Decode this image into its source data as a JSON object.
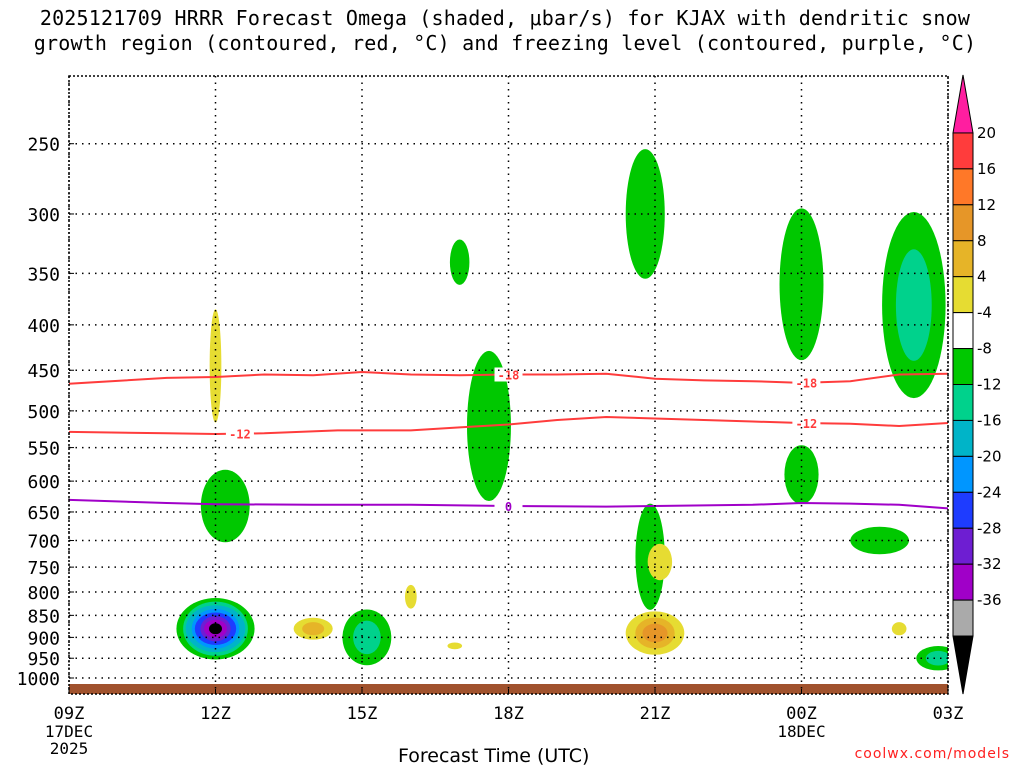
{
  "chart_data": {
    "type": "time-height contour plot",
    "title_line1": "2025121709 HRRR Forecast Omega (shaded, μbar/s) for KJAX with dendritic snow",
    "title_line2": "growth region (contoured, red, °C) and freezing level (contoured, purple, °C)",
    "xlabel": "Forecast Time (UTC)",
    "x_ticks": [
      {
        "hour": 0,
        "label": "09Z",
        "sub1": "17DEC",
        "sub2": "2025"
      },
      {
        "hour": 3,
        "label": "12Z",
        "sub1": "",
        "sub2": ""
      },
      {
        "hour": 6,
        "label": "15Z",
        "sub1": "",
        "sub2": ""
      },
      {
        "hour": 9,
        "label": "18Z",
        "sub1": "",
        "sub2": ""
      },
      {
        "hour": 12,
        "label": "21Z",
        "sub1": "",
        "sub2": ""
      },
      {
        "hour": 15,
        "label": "00Z",
        "sub1": "18DEC",
        "sub2": ""
      },
      {
        "hour": 18,
        "label": "03Z",
        "sub1": "",
        "sub2": ""
      }
    ],
    "y_ticks": [
      250,
      300,
      350,
      400,
      450,
      500,
      550,
      600,
      650,
      700,
      750,
      800,
      850,
      900,
      950,
      1000
    ],
    "ylim": [
      200,
      1025
    ],
    "xlim": [
      0,
      18
    ],
    "colorbar": {
      "labels": [
        "20",
        "16",
        "12",
        "8",
        "4",
        "-4",
        "-8",
        "-12",
        "-16",
        "-20",
        "-24",
        "-28",
        "-32",
        "-36"
      ],
      "colors": [
        "#ff1ea0",
        "#ff3c3c",
        "#ff7828",
        "#e69628",
        "#e6b428",
        "#e6dc32",
        "#ffffff",
        "#00c800",
        "#00d28c",
        "#00b4c8",
        "#0096ff",
        "#1e3cff",
        "#6e1ed2",
        "#a000c8",
        "#aaaaaa",
        "#000000"
      ]
    },
    "contours": [
      {
        "name": "dgz-warm",
        "value": "-12",
        "color": "#ff3c3c",
        "points": [
          [
            0,
            528
          ],
          [
            2,
            530
          ],
          [
            3,
            531
          ],
          [
            4,
            530
          ],
          [
            5.5,
            526
          ],
          [
            7,
            526
          ],
          [
            8,
            522
          ],
          [
            9,
            518
          ],
          [
            10,
            512
          ],
          [
            11,
            508
          ],
          [
            12,
            510
          ],
          [
            13,
            512
          ],
          [
            14,
            514
          ],
          [
            15,
            516
          ],
          [
            16,
            517
          ],
          [
            17,
            520
          ],
          [
            18,
            516
          ]
        ],
        "labels": [
          {
            "h": 3.5,
            "text": "-12"
          },
          {
            "h": 15.1,
            "text": "-12"
          }
        ]
      },
      {
        "name": "dgz-cold",
        "value": "-18",
        "color": "#ff3c3c",
        "points": [
          [
            0,
            466
          ],
          [
            2,
            459
          ],
          [
            3,
            458
          ],
          [
            4,
            455
          ],
          [
            5,
            456
          ],
          [
            6,
            452
          ],
          [
            7,
            455
          ],
          [
            8,
            456
          ],
          [
            9,
            455
          ],
          [
            10,
            455
          ],
          [
            11,
            454
          ],
          [
            12,
            460
          ],
          [
            13,
            462
          ],
          [
            14,
            463
          ],
          [
            15,
            465
          ],
          [
            16,
            463
          ],
          [
            17,
            455
          ],
          [
            18,
            454
          ]
        ],
        "labels": [
          {
            "h": 9.0,
            "text": "-18"
          },
          {
            "h": 15.1,
            "text": "-18"
          }
        ]
      },
      {
        "name": "freezing-level",
        "value": "0",
        "color": "#a000c8",
        "points": [
          [
            0,
            630
          ],
          [
            2,
            635
          ],
          [
            3,
            637
          ],
          [
            5,
            638
          ],
          [
            7,
            638
          ],
          [
            9,
            640
          ],
          [
            11,
            641
          ],
          [
            12,
            640
          ],
          [
            14,
            638
          ],
          [
            15,
            635
          ],
          [
            16,
            636
          ],
          [
            17,
            638
          ],
          [
            18,
            644
          ]
        ],
        "labels": [
          {
            "h": 9.0,
            "text": "0"
          }
        ]
      }
    ],
    "omega_blobs": [
      {
        "name": "blob-12z-core",
        "h": 3.0,
        "p": 880,
        "levels": [
          "-8",
          "-12",
          "-16",
          "-20",
          "-24",
          "-28",
          "-32",
          "-36"
        ],
        "rx": 0.8,
        "rp": 70
      },
      {
        "name": "blob-15z-low",
        "h": 6.1,
        "p": 900,
        "levels": [
          "-8",
          "-12"
        ],
        "rx": 0.5,
        "rp": 65
      },
      {
        "name": "blob-12z-mid",
        "h": 3.2,
        "p": 640,
        "levels": [
          "-8"
        ],
        "rx": 0.5,
        "rp": 60
      },
      {
        "name": "blob-18z-mid",
        "h": 8.6,
        "p": 520,
        "levels": [
          "-8"
        ],
        "rx": 0.45,
        "rp": 100
      },
      {
        "name": "blob-17z-upper",
        "h": 8.0,
        "p": 340,
        "levels": [
          "-8"
        ],
        "rx": 0.2,
        "rp": 20
      },
      {
        "name": "blob-20z-upper",
        "h": 11.8,
        "p": 300,
        "levels": [
          "-8"
        ],
        "rx": 0.4,
        "rp": 50
      },
      {
        "name": "blob-20z-low",
        "h": 11.9,
        "p": 730,
        "levels": [
          "-8"
        ],
        "rx": 0.3,
        "rp": 100
      },
      {
        "name": "blob-00z-upper",
        "h": 15.0,
        "p": 360,
        "levels": [
          "-8"
        ],
        "rx": 0.45,
        "rp": 70
      },
      {
        "name": "blob-00z-mid",
        "h": 15.0,
        "p": 590,
        "levels": [
          "-8"
        ],
        "rx": 0.35,
        "rp": 45
      },
      {
        "name": "blob-02z-low",
        "h": 16.6,
        "p": 700,
        "levels": [
          "-8"
        ],
        "rx": 0.6,
        "rp": 25
      },
      {
        "name": "blob-02z-upper",
        "h": 17.3,
        "p": 380,
        "levels": [
          "-8",
          "-12"
        ],
        "rx": 0.65,
        "rp": 90
      },
      {
        "name": "blob-03z-sfc",
        "h": 17.8,
        "p": 950,
        "levels": [
          "-8",
          "-12"
        ],
        "rx": 0.45,
        "rp": 30
      },
      {
        "name": "blob-21z-rise",
        "h": 12.0,
        "p": 890,
        "levels": [
          "4",
          "8",
          "12"
        ],
        "rx": 0.6,
        "rp": 50
      },
      {
        "name": "blob-14z-rise",
        "h": 5.0,
        "p": 880,
        "levels": [
          "4",
          "8"
        ],
        "rx": 0.4,
        "rp": 25
      },
      {
        "name": "blob-12z-upper-rise",
        "h": 3.0,
        "p": 445,
        "levels": [
          "4"
        ],
        "rx": 0.12,
        "rp": 65
      },
      {
        "name": "blob-21z-mid-rise",
        "h": 12.1,
        "p": 740,
        "levels": [
          "4"
        ],
        "rx": 0.25,
        "rp": 35
      },
      {
        "name": "blob-16z-rise",
        "h": 7.0,
        "p": 810,
        "levels": [
          "4"
        ],
        "rx": 0.12,
        "rp": 25
      },
      {
        "name": "blob-17z-rise",
        "h": 7.9,
        "p": 920,
        "levels": [
          "4"
        ],
        "rx": 0.15,
        "rp": 8
      },
      {
        "name": "blob-02z-sfc-rise",
        "h": 17.0,
        "p": 880,
        "levels": [
          "4"
        ],
        "rx": 0.15,
        "rp": 15
      }
    ]
  },
  "credit": "coolwx.com/models"
}
